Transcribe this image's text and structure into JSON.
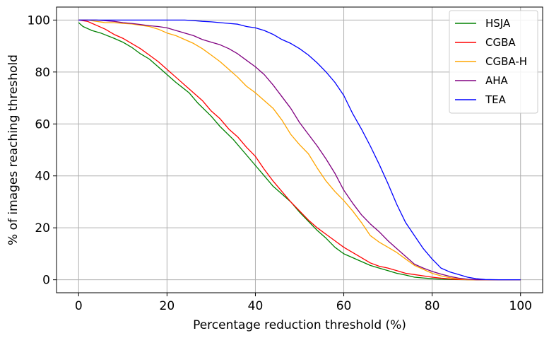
{
  "chart_data": {
    "type": "line",
    "title": "",
    "xlabel": "Percentage reduction threshold (%)",
    "ylabel": "% of images reaching threshold",
    "xlim": [
      -5,
      105
    ],
    "ylim": [
      -5,
      105
    ],
    "grid": true,
    "legend_position": "top-right",
    "x_ticks": [
      0,
      20,
      40,
      60,
      80,
      100
    ],
    "y_ticks": [
      0,
      20,
      40,
      60,
      80,
      100
    ],
    "x_tick_labels": [
      "0",
      "20",
      "40",
      "60",
      "80",
      "100"
    ],
    "y_tick_labels": [
      "0",
      "20",
      "40",
      "60",
      "80",
      "100"
    ],
    "series": [
      {
        "name": "HSJA",
        "color": "#008000",
        "points": [
          [
            0,
            99
          ],
          [
            1,
            97.5
          ],
          [
            3,
            96
          ],
          [
            5,
            95
          ],
          [
            8,
            93
          ],
          [
            10,
            91.5
          ],
          [
            12,
            89.5
          ],
          [
            14,
            87
          ],
          [
            16,
            85
          ],
          [
            18,
            82
          ],
          [
            20,
            79
          ],
          [
            22,
            76
          ],
          [
            25,
            72
          ],
          [
            27,
            68
          ],
          [
            30,
            63
          ],
          [
            32,
            59
          ],
          [
            35,
            54
          ],
          [
            37,
            50
          ],
          [
            40,
            44
          ],
          [
            42,
            40
          ],
          [
            44,
            36
          ],
          [
            46,
            33
          ],
          [
            48,
            30
          ],
          [
            50,
            26
          ],
          [
            52,
            22.5
          ],
          [
            54,
            19
          ],
          [
            56,
            16
          ],
          [
            58,
            12.5
          ],
          [
            60,
            10
          ],
          [
            62,
            8.5
          ],
          [
            64,
            7
          ],
          [
            66,
            5.5
          ],
          [
            68,
            4.5
          ],
          [
            70,
            3.5
          ],
          [
            72,
            2.5
          ],
          [
            74,
            1.8
          ],
          [
            76,
            1
          ],
          [
            78,
            0.7
          ],
          [
            80,
            0.4
          ],
          [
            82,
            0.2
          ],
          [
            85,
            0.1
          ],
          [
            90,
            0
          ],
          [
            100,
            0
          ]
        ]
      },
      {
        "name": "CGBA",
        "color": "#ff0000",
        "points": [
          [
            0,
            100
          ],
          [
            2,
            99.5
          ],
          [
            4,
            98
          ],
          [
            6,
            96.5
          ],
          [
            8,
            94.5
          ],
          [
            10,
            93
          ],
          [
            12,
            91
          ],
          [
            14,
            89
          ],
          [
            16,
            86.5
          ],
          [
            18,
            84
          ],
          [
            20,
            81
          ],
          [
            22,
            78
          ],
          [
            24,
            75
          ],
          [
            26,
            72
          ],
          [
            28,
            69
          ],
          [
            30,
            65
          ],
          [
            32,
            62
          ],
          [
            34,
            58
          ],
          [
            36,
            55
          ],
          [
            38,
            51
          ],
          [
            40,
            47.5
          ],
          [
            42,
            42.5
          ],
          [
            44,
            38
          ],
          [
            46,
            34
          ],
          [
            48,
            30
          ],
          [
            50,
            26.5
          ],
          [
            52,
            23
          ],
          [
            54,
            20
          ],
          [
            56,
            17.5
          ],
          [
            58,
            15
          ],
          [
            60,
            12.5
          ],
          [
            62,
            10.5
          ],
          [
            64,
            8.5
          ],
          [
            66,
            6.5
          ],
          [
            68,
            5.2
          ],
          [
            70,
            4.5
          ],
          [
            72,
            3.5
          ],
          [
            74,
            2.5
          ],
          [
            76,
            2
          ],
          [
            78,
            1.5
          ],
          [
            80,
            1
          ],
          [
            82,
            0.6
          ],
          [
            84,
            0.3
          ],
          [
            86,
            0.1
          ],
          [
            90,
            0
          ],
          [
            100,
            0
          ]
        ]
      },
      {
        "name": "CGBA-H",
        "color": "#ffa500",
        "points": [
          [
            0,
            100
          ],
          [
            2,
            100
          ],
          [
            4,
            99.5
          ],
          [
            6,
            99
          ],
          [
            8,
            99
          ],
          [
            10,
            98.7
          ],
          [
            12,
            98.5
          ],
          [
            14,
            98
          ],
          [
            16,
            97.5
          ],
          [
            18,
            96.5
          ],
          [
            20,
            95
          ],
          [
            22,
            94
          ],
          [
            24,
            92.5
          ],
          [
            26,
            91
          ],
          [
            28,
            89
          ],
          [
            30,
            86.5
          ],
          [
            32,
            84
          ],
          [
            34,
            81
          ],
          [
            36,
            78
          ],
          [
            38,
            74.5
          ],
          [
            40,
            72
          ],
          [
            42,
            69
          ],
          [
            44,
            66
          ],
          [
            46,
            61.5
          ],
          [
            48,
            56
          ],
          [
            50,
            52
          ],
          [
            52,
            48.5
          ],
          [
            54,
            43
          ],
          [
            56,
            38
          ],
          [
            58,
            34
          ],
          [
            60,
            30.5
          ],
          [
            62,
            26.5
          ],
          [
            64,
            22
          ],
          [
            66,
            17
          ],
          [
            68,
            14.5
          ],
          [
            70,
            12.5
          ],
          [
            72,
            10.5
          ],
          [
            74,
            8
          ],
          [
            76,
            5.5
          ],
          [
            78,
            4
          ],
          [
            80,
            2.5
          ],
          [
            82,
            1.5
          ],
          [
            84,
            0.8
          ],
          [
            86,
            0.3
          ],
          [
            88,
            0
          ],
          [
            100,
            0
          ]
        ]
      },
      {
        "name": "AHA",
        "color": "#800080",
        "points": [
          [
            0,
            100
          ],
          [
            4,
            100
          ],
          [
            8,
            99.5
          ],
          [
            10,
            99
          ],
          [
            12,
            98.7
          ],
          [
            14,
            98.3
          ],
          [
            16,
            97.8
          ],
          [
            18,
            97.5
          ],
          [
            20,
            97
          ],
          [
            22,
            96
          ],
          [
            24,
            95
          ],
          [
            26,
            94
          ],
          [
            28,
            92.5
          ],
          [
            30,
            91.5
          ],
          [
            32,
            90.5
          ],
          [
            34,
            89
          ],
          [
            36,
            87
          ],
          [
            38,
            84.5
          ],
          [
            40,
            82
          ],
          [
            42,
            79
          ],
          [
            44,
            75
          ],
          [
            46,
            70.5
          ],
          [
            48,
            66
          ],
          [
            50,
            60.5
          ],
          [
            52,
            56
          ],
          [
            54,
            51.5
          ],
          [
            56,
            46.5
          ],
          [
            58,
            41
          ],
          [
            60,
            34.5
          ],
          [
            62,
            29.5
          ],
          [
            64,
            25
          ],
          [
            66,
            21.5
          ],
          [
            68,
            18.5
          ],
          [
            70,
            15
          ],
          [
            72,
            12
          ],
          [
            74,
            9
          ],
          [
            76,
            6
          ],
          [
            78,
            4.5
          ],
          [
            80,
            3.2
          ],
          [
            82,
            2.2
          ],
          [
            84,
            1.3
          ],
          [
            86,
            0.6
          ],
          [
            88,
            0.2
          ],
          [
            90,
            0
          ],
          [
            100,
            0
          ]
        ]
      },
      {
        "name": "TEA",
        "color": "#0000ff",
        "points": [
          [
            0,
            100
          ],
          [
            10,
            100
          ],
          [
            20,
            100
          ],
          [
            24,
            100
          ],
          [
            26,
            99.8
          ],
          [
            28,
            99.5
          ],
          [
            30,
            99.3
          ],
          [
            32,
            99
          ],
          [
            34,
            98.7
          ],
          [
            36,
            98.4
          ],
          [
            38,
            97.5
          ],
          [
            40,
            97
          ],
          [
            42,
            96
          ],
          [
            44,
            94.5
          ],
          [
            46,
            92.5
          ],
          [
            48,
            91
          ],
          [
            50,
            89
          ],
          [
            52,
            86.5
          ],
          [
            54,
            83.5
          ],
          [
            56,
            80
          ],
          [
            58,
            76
          ],
          [
            60,
            71
          ],
          [
            62,
            64
          ],
          [
            64,
            58
          ],
          [
            66,
            51.5
          ],
          [
            68,
            44.5
          ],
          [
            70,
            37
          ],
          [
            72,
            29
          ],
          [
            74,
            22
          ],
          [
            76,
            17
          ],
          [
            78,
            12
          ],
          [
            80,
            8
          ],
          [
            82,
            4.5
          ],
          [
            84,
            3
          ],
          [
            86,
            2
          ],
          [
            88,
            1
          ],
          [
            90,
            0.4
          ],
          [
            92,
            0.1
          ],
          [
            95,
            0
          ],
          [
            100,
            0
          ]
        ]
      }
    ]
  }
}
